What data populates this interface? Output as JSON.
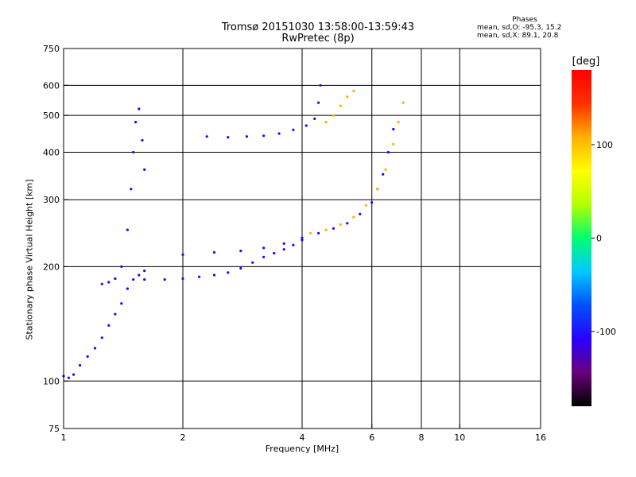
{
  "header": {
    "title": "Tromsø 20151030 13:58:00-13:59:43",
    "subtitle": "RwPretec (8p)"
  },
  "phase_box": {
    "heading": "Phases",
    "line_o": "mean, sd,O: -95.3, 15.2",
    "line_x": "mean, sd,X: 89.1, 20.8"
  },
  "colorbar": {
    "unit": "[deg]",
    "ticks": [
      "100",
      "0",
      "-100"
    ],
    "tick_values": [
      100,
      0,
      -100
    ],
    "range": [
      -180,
      180
    ],
    "colors": [
      "#000000",
      "#6a007a",
      "#2a00ff",
      "#0050ff",
      "#00c8ff",
      "#00ff70",
      "#b4ff00",
      "#ffff00",
      "#ffb000",
      "#ff3000",
      "#ff0000"
    ]
  },
  "chart_data": {
    "type": "scatter",
    "title": "Tromsø 20151030 13:58:00-13:59:43",
    "subtitle": "RwPretec (8p)",
    "xlabel": "Frequency [MHz]",
    "ylabel": "Stationary phase Virtual Height [km]",
    "x_scale": "log",
    "y_scale": "log",
    "xlim": [
      1,
      16
    ],
    "ylim": [
      75,
      750
    ],
    "x_ticks": [
      1,
      2,
      4,
      6,
      8,
      10,
      16
    ],
    "x_tick_labels": [
      "1",
      "2",
      "4",
      "6",
      "8",
      "10",
      "16"
    ],
    "y_ticks": [
      75,
      100,
      200,
      300,
      400,
      500,
      600,
      750
    ],
    "y_tick_labels": [
      "75",
      "100",
      "200",
      "300",
      "400",
      "500",
      "600",
      "750"
    ],
    "x_gridlines": [
      2,
      4,
      6,
      8,
      10
    ],
    "y_gridlines": [
      100,
      200,
      300,
      400,
      500,
      600
    ],
    "grid": true,
    "colorbar_label": "[deg]",
    "colorbar_ticks": [
      100,
      0,
      -100
    ],
    "colorbar_range": [
      -180,
      180
    ],
    "series": [
      {
        "phase": -100,
        "points": [
          [
            1.0,
            103
          ],
          [
            1.03,
            102
          ],
          [
            1.06,
            104
          ],
          [
            1.1,
            110
          ],
          [
            1.15,
            116
          ],
          [
            1.2,
            122
          ],
          [
            1.25,
            130
          ],
          [
            1.3,
            140
          ],
          [
            1.35,
            150
          ],
          [
            1.4,
            160
          ],
          [
            1.45,
            175
          ],
          [
            1.5,
            185
          ],
          [
            1.55,
            190
          ],
          [
            1.6,
            195
          ]
        ]
      },
      {
        "phase": -100,
        "points": [
          [
            1.25,
            180
          ],
          [
            1.3,
            182
          ],
          [
            1.35,
            186
          ],
          [
            1.4,
            200
          ],
          [
            1.45,
            250
          ],
          [
            1.48,
            320
          ],
          [
            1.5,
            400
          ],
          [
            1.52,
            480
          ],
          [
            1.55,
            520
          ],
          [
            1.58,
            430
          ],
          [
            1.6,
            360
          ]
        ]
      },
      {
        "phase": -100,
        "points": [
          [
            1.6,
            185
          ],
          [
            1.8,
            185
          ],
          [
            2.0,
            186
          ],
          [
            2.2,
            188
          ],
          [
            2.4,
            190
          ],
          [
            2.6,
            193
          ],
          [
            2.8,
            198
          ],
          [
            3.0,
            205
          ],
          [
            3.2,
            212
          ],
          [
            3.4,
            217
          ],
          [
            3.6,
            222
          ],
          [
            3.8,
            228
          ],
          [
            4.0,
            235
          ]
        ]
      },
      {
        "phase": -100,
        "points": [
          [
            2.0,
            215
          ],
          [
            2.4,
            218
          ],
          [
            2.8,
            220
          ],
          [
            3.2,
            224
          ],
          [
            3.6,
            230
          ],
          [
            4.0,
            238
          ],
          [
            4.4,
            245
          ],
          [
            4.8,
            252
          ],
          [
            5.2,
            260
          ],
          [
            5.6,
            275
          ],
          [
            6.0,
            295
          ],
          [
            6.2,
            320
          ],
          [
            6.4,
            350
          ],
          [
            6.6,
            400
          ],
          [
            6.8,
            460
          ]
        ]
      },
      {
        "phase": -100,
        "points": [
          [
            2.3,
            440
          ],
          [
            2.6,
            438
          ],
          [
            2.9,
            440
          ],
          [
            3.2,
            442
          ],
          [
            3.5,
            448
          ],
          [
            3.8,
            458
          ],
          [
            4.1,
            470
          ],
          [
            4.3,
            490
          ],
          [
            4.4,
            540
          ],
          [
            4.45,
            600
          ]
        ]
      },
      {
        "phase": 100,
        "points": [
          [
            4.2,
            245
          ],
          [
            4.6,
            250
          ],
          [
            5.0,
            258
          ],
          [
            5.4,
            270
          ],
          [
            5.8,
            290
          ],
          [
            6.2,
            320
          ],
          [
            6.5,
            360
          ],
          [
            6.8,
            420
          ],
          [
            7.0,
            480
          ],
          [
            7.2,
            540
          ]
        ]
      },
      {
        "phase": 100,
        "points": [
          [
            4.6,
            480
          ],
          [
            4.8,
            500
          ],
          [
            5.0,
            530
          ],
          [
            5.2,
            560
          ],
          [
            5.4,
            580
          ]
        ]
      }
    ]
  }
}
